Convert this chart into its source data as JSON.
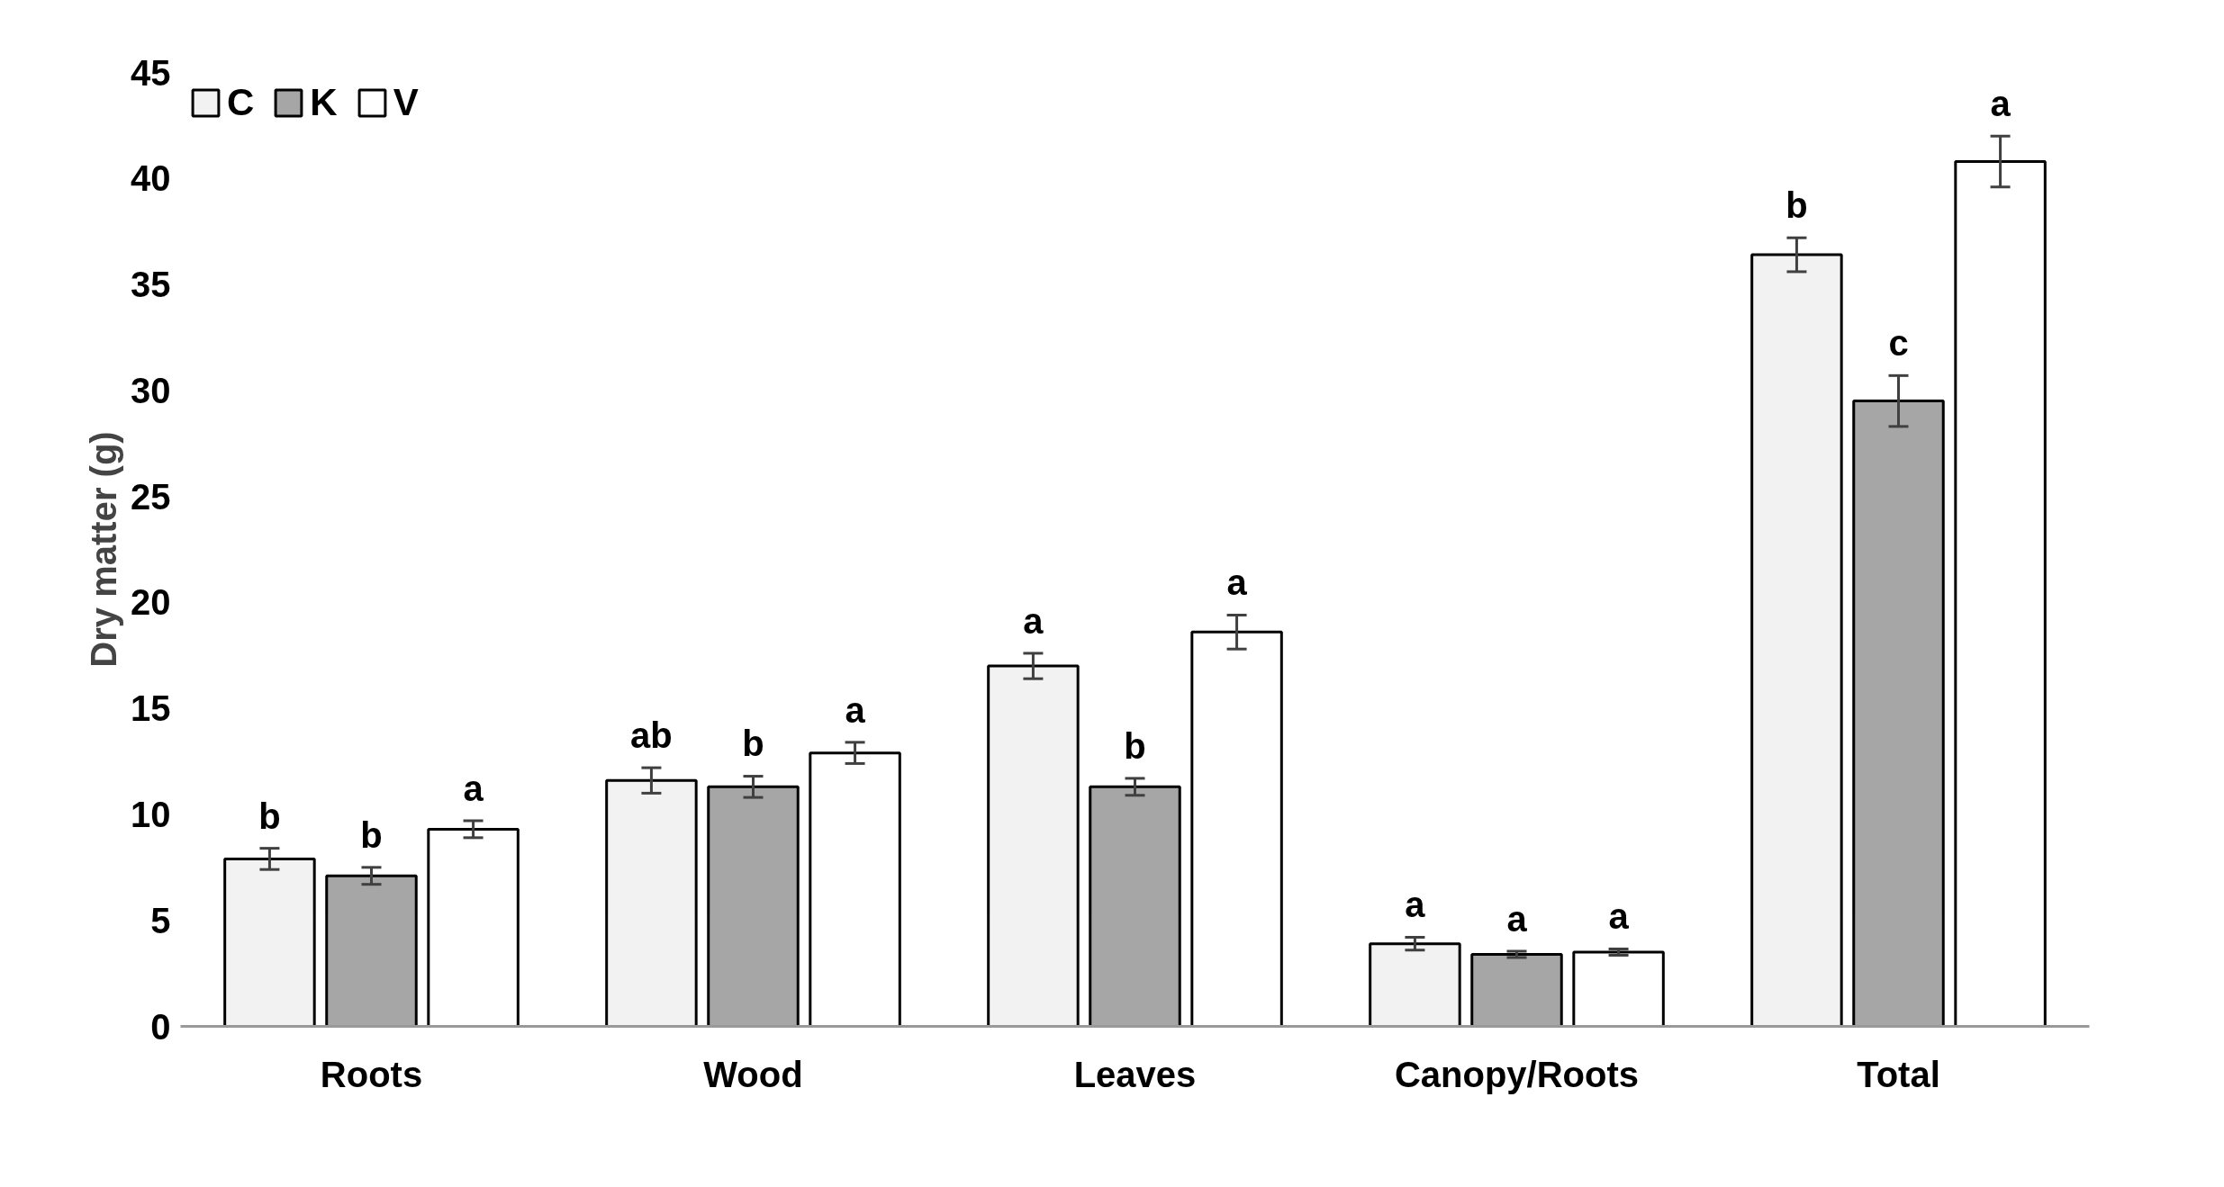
{
  "chart_data": {
    "type": "bar",
    "ylabel": "Dry matter (g)",
    "categories": [
      "Roots",
      "Wood",
      "Leaves",
      "Canopy/Roots",
      "Total"
    ],
    "series": [
      {
        "name": "C",
        "color": "#f2f2f2",
        "values": [
          7.9,
          11.6,
          17.0,
          3.9,
          36.4
        ],
        "errors": [
          0.5,
          0.6,
          0.6,
          0.3,
          0.8
        ],
        "value_labels": [
          "b",
          "ab",
          "a",
          "a",
          "b"
        ]
      },
      {
        "name": "K",
        "color": "#a6a6a6",
        "values": [
          7.1,
          11.3,
          11.3,
          3.4,
          29.5
        ],
        "errors": [
          0.4,
          0.5,
          0.4,
          0.15,
          1.2
        ],
        "value_labels": [
          "b",
          "b",
          "b",
          "a",
          "c"
        ]
      },
      {
        "name": "V",
        "color": "#ffffff",
        "values": [
          9.3,
          12.9,
          18.6,
          3.5,
          40.8
        ],
        "errors": [
          0.4,
          0.5,
          0.8,
          0.15,
          1.2
        ],
        "value_labels": [
          "a",
          "a",
          "a",
          "a",
          "a"
        ]
      }
    ],
    "ylim": [
      0,
      45
    ],
    "yticks": [
      0,
      5,
      10,
      15,
      20,
      25,
      30,
      35,
      40,
      45
    ],
    "grid": false,
    "legend": "top left"
  }
}
